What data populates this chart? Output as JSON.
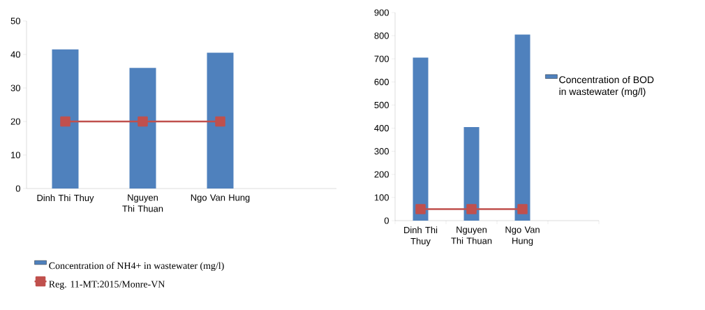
{
  "chart_data": [
    {
      "type": "bar",
      "categories": [
        "Dinh Thi Thuy",
        "Nguyen Thi Thuan",
        "Ngo Van Hung",
        null
      ],
      "ylim": [
        0,
        50
      ],
      "yticks": [
        0,
        10,
        20,
        30,
        40,
        50
      ],
      "legend": "bottom",
      "marker": "square",
      "series": [
        {
          "name": "Concentration of NH4+ in wastewater (mg/l)",
          "color": "#4f81bd",
          "values": [
            41.5,
            36,
            40.5,
            null
          ]
        },
        {
          "name": "Reg. 11-MT:2015/Monre-VN",
          "type": "line",
          "color": "#c0504d",
          "values": [
            20,
            20,
            20,
            null
          ]
        }
      ]
    },
    {
      "type": "bar",
      "categories": [
        "Dinh Thi Thuy",
        "Nguyen Thi Thuan",
        "Ngo Van Hung",
        null
      ],
      "ylim": [
        0,
        900
      ],
      "yticks": [
        0,
        100,
        200,
        300,
        400,
        500,
        600,
        700,
        800,
        900
      ],
      "legend": "right",
      "marker": "square",
      "series": [
        {
          "name": "Concentration of BOD in wastewater (mg/l)",
          "color": "#4f81bd",
          "values": [
            705,
            405,
            805,
            null
          ]
        },
        {
          "type": "line",
          "color": "#c0504d",
          "values": [
            50,
            50,
            50,
            null
          ]
        }
      ]
    }
  ]
}
